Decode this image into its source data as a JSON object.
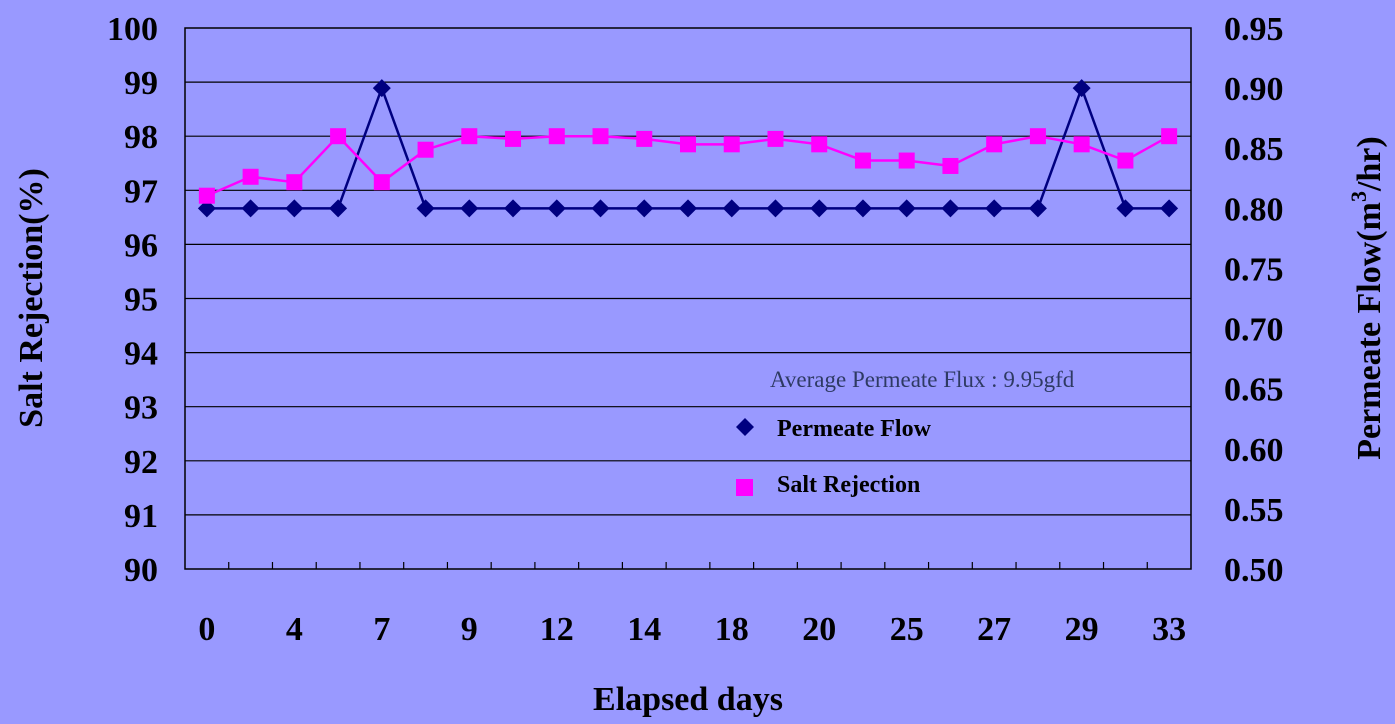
{
  "chart_data": {
    "type": "line",
    "categories": [
      "0",
      "",
      "4",
      "",
      "7",
      "",
      "9",
      "",
      "12",
      "",
      "14",
      "",
      "18",
      "",
      "20",
      "",
      "25",
      "",
      "27",
      "",
      "29",
      "",
      "33"
    ],
    "series": [
      {
        "name": "Permeate Flow",
        "axis": "right",
        "color": "#000080",
        "marker": "diamond",
        "values": [
          0.8,
          0.8,
          0.8,
          0.8,
          0.9,
          0.8,
          0.8,
          0.8,
          0.8,
          0.8,
          0.8,
          0.8,
          0.8,
          0.8,
          0.8,
          0.8,
          0.8,
          0.8,
          0.8,
          0.8,
          0.9,
          0.8,
          0.8
        ]
      },
      {
        "name": "Salt Rejection",
        "axis": "left",
        "color": "#ff00ff",
        "marker": "square",
        "values": [
          96.9,
          97.25,
          97.15,
          98.0,
          97.15,
          97.75,
          98.0,
          97.95,
          98.0,
          98.0,
          97.95,
          97.85,
          97.85,
          97.95,
          97.85,
          97.55,
          97.55,
          97.45,
          97.85,
          98.0,
          97.85,
          97.55,
          98.0
        ]
      }
    ],
    "ylabel": "Salt Rejection(%)",
    "ylabel_right": "Permeate Flow(m3/hr)",
    "xlabel": "Elapsed days",
    "ylim": [
      90,
      100
    ],
    "ylim_right": [
      0.5,
      0.95
    ],
    "y_ticks": [
      "90",
      "91",
      "92",
      "93",
      "94",
      "95",
      "96",
      "97",
      "98",
      "99",
      "100"
    ],
    "y_ticks_right": [
      "0.50",
      "0.55",
      "0.60",
      "0.65",
      "0.70",
      "0.75",
      "0.80",
      "0.85",
      "0.90",
      "0.95"
    ],
    "annotation": "Average Permeate Flux : 9.95gfd",
    "legend_position": "center-right",
    "grid": "horizontal",
    "plot_background": "#9999ff"
  },
  "labels": {
    "ylabel_right_main": "Permeate Flow(m",
    "ylabel_right_sup": "3",
    "ylabel_right_tail": "/hr)"
  }
}
